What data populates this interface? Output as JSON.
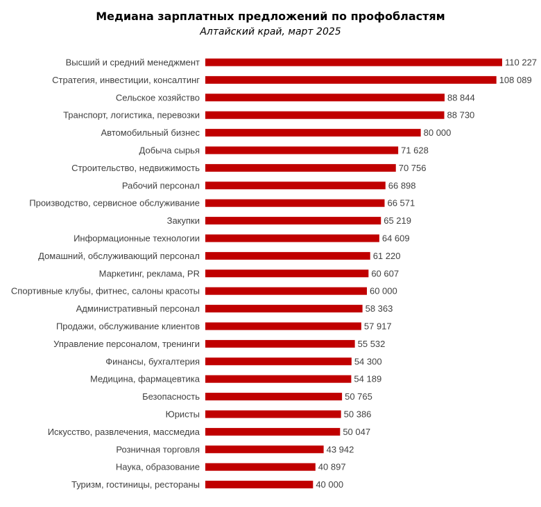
{
  "chart_data": {
    "type": "bar",
    "orientation": "horizontal",
    "title": "Медиана зарплатных предложений по профобластям",
    "subtitle": "Алтайский край, март 2025",
    "categories": [
      "Высший и средний менеджмент",
      "Стратегия, инвестиции, консалтинг",
      "Сельское хозяйство",
      "Транспорт, логистика, перевозки",
      "Автомобильный бизнес",
      "Добыча сырья",
      "Строительство, недвижимость",
      "Рабочий  персонал",
      "Производство, сервисное обслуживание",
      "Закупки",
      "Информационные технологии",
      "Домашний, обслуживающий персонал",
      "Маркетинг, реклама, PR",
      "Спортивные клубы, фитнес, салоны красоты",
      "Административный персонал",
      "Продажи, обслуживание клиентов",
      "Управление персоналом, тренинги",
      "Финансы, бухгалтерия",
      "Медицина,  фармацевтика",
      "Безопасность",
      "Юристы",
      "Искусство, развлечения, массмедиа",
      "Розничная торговля",
      "Наука, образование",
      "Туризм, гостиницы, рестораны"
    ],
    "values": [
      110227,
      108089,
      88844,
      88730,
      80000,
      71628,
      70756,
      66898,
      66571,
      65219,
      64609,
      61220,
      60607,
      60000,
      58363,
      57917,
      55532,
      54300,
      54189,
      50765,
      50386,
      50047,
      43942,
      40897,
      40000
    ],
    "value_labels": [
      "110 227",
      "108 089",
      "88 844",
      "88 730",
      "80 000",
      "71 628",
      "70 756",
      "66 898",
      "66 571",
      "65 219",
      "64 609",
      "61 220",
      "60 607",
      "60 000",
      "58 363",
      "57 917",
      "55 532",
      "54 300",
      "54 189",
      "50 765",
      "50 386",
      "50 047",
      "43 942",
      "40 897",
      "40 000"
    ],
    "xlim": [
      0,
      110227
    ],
    "grid": false,
    "legend": "none",
    "bar_color": "#c00000"
  }
}
